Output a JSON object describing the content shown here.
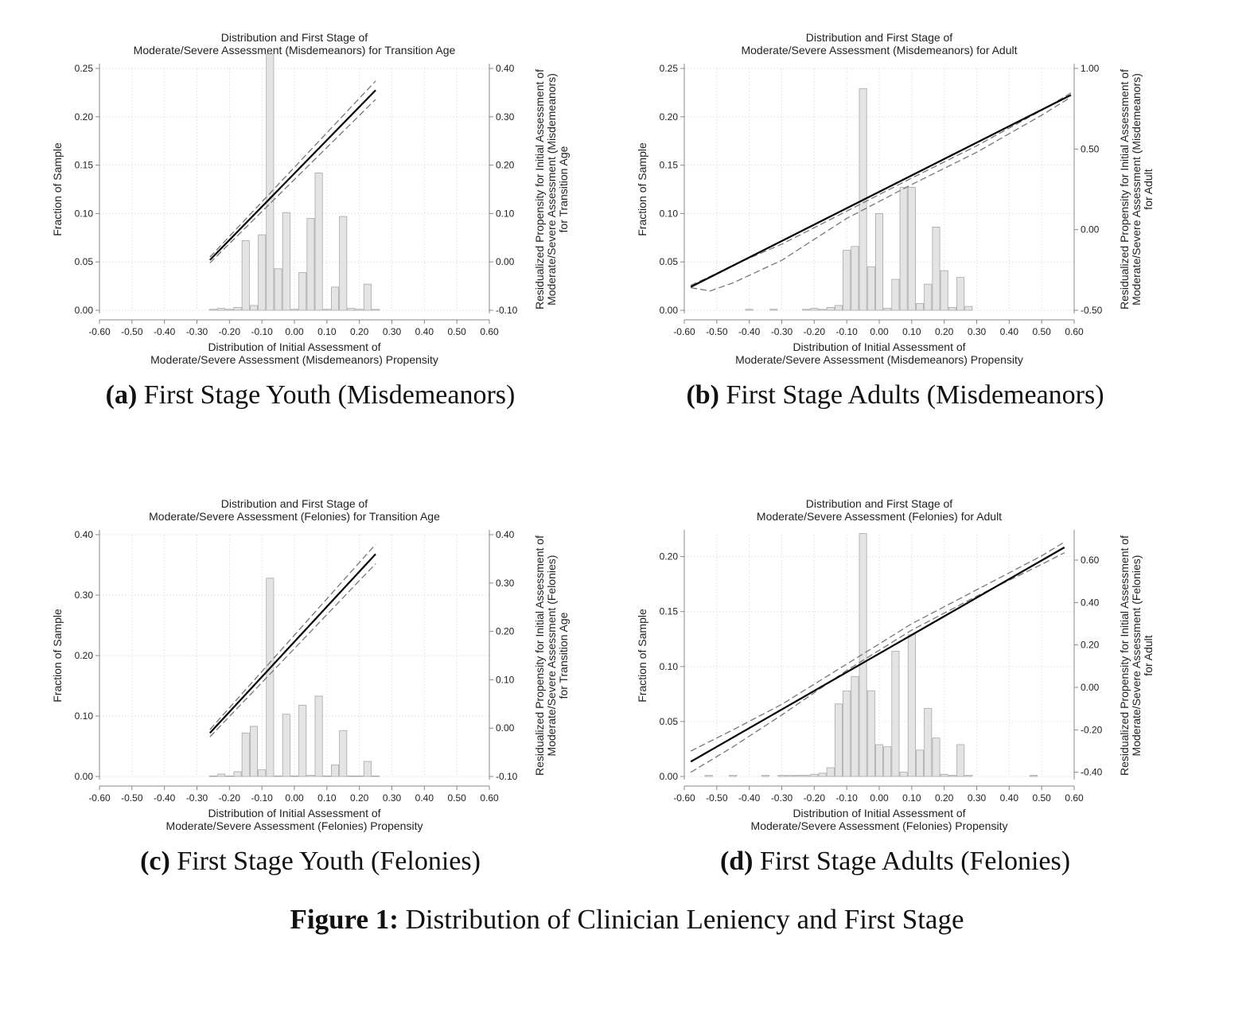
{
  "figure_caption": {
    "label": "Figure 1:",
    "text": "Distribution of Clinician Leniency and First Stage"
  },
  "chart_data": [
    {
      "type": "bar",
      "panel_label": "(a)",
      "subcaption": "First Stage Youth (Misdemeanors)",
      "title": [
        "Distribution and First Stage of",
        "Moderate/Severe Assessment (Misdemeanors) for Transition Age"
      ],
      "xlabel": [
        "Distribution of Initial Assessment of",
        "Moderate/Severe Assessment (Misdemeanors) Propensity"
      ],
      "ylabel_left": "Fraction of Sample",
      "ylabel_right": [
        "Residualized Propensity for Initial Assessment of",
        "Moderate/Severe Assessment (Misdemeanors)",
        "for Transition Age"
      ],
      "xlim": [
        -0.6,
        0.6
      ],
      "ylim_left": [
        0,
        0.25
      ],
      "ylim_right": [
        -0.1,
        0.4
      ],
      "x_ticks": [
        "-0.60",
        "-0.50",
        "-0.40",
        "-0.30",
        "-0.20",
        "-0.10",
        "0.00",
        "0.10",
        "0.20",
        "0.30",
        "0.40",
        "0.50",
        "0.60"
      ],
      "y_ticks_left": [
        "0.00",
        "0.05",
        "0.10",
        "0.15",
        "0.20",
        "0.25"
      ],
      "y_ticks_right": [
        "-0.10",
        "0.00",
        "0.10",
        "0.20",
        "0.30",
        "0.40"
      ],
      "histogram": {
        "bin_width": 0.025,
        "x": [
          -0.25,
          -0.225,
          -0.2,
          -0.175,
          -0.15,
          -0.125,
          -0.1,
          -0.075,
          -0.05,
          -0.025,
          0.0,
          0.025,
          0.05,
          0.075,
          0.1,
          0.125,
          0.15,
          0.175,
          0.2,
          0.225,
          0.25
        ],
        "values": [
          0.001,
          0.002,
          0.001,
          0.003,
          0.072,
          0.005,
          0.078,
          0.265,
          0.043,
          0.101,
          0.001,
          0.039,
          0.095,
          0.142,
          0.001,
          0.024,
          0.097,
          0.002,
          0.001,
          0.027,
          0.001
        ]
      },
      "fit_line": {
        "x": [
          -0.26,
          0.25
        ],
        "y": [
          0.004,
          0.355
        ]
      },
      "ci_upper": {
        "x": [
          -0.26,
          0.25
        ],
        "y": [
          0.01,
          0.374
        ]
      },
      "ci_lower": {
        "x": [
          -0.26,
          0.25
        ],
        "y": [
          -0.002,
          0.336
        ]
      }
    },
    {
      "type": "bar",
      "panel_label": "(b)",
      "subcaption": "First Stage Adults (Misdemeanors)",
      "title": [
        "Distribution and First Stage of",
        "Moderate/Severe Assessment (Misdemeanors) for Adult"
      ],
      "xlabel": [
        "Distribution of Initial Assessment of",
        "Moderate/Severe Assessment (Misdemeanors) Propensity"
      ],
      "ylabel_left": "Fraction of Sample",
      "ylabel_right": [
        "Residualized Propensity for Initial Assessment of",
        "Moderate/Severe Assessment (Misdemeanors)",
        "for Adult"
      ],
      "xlim": [
        -0.6,
        0.6
      ],
      "ylim_left": [
        0,
        0.25
      ],
      "ylim_right": [
        -0.5,
        1.0
      ],
      "x_ticks": [
        "-0.60",
        "-0.50",
        "-0.40",
        "-0.30",
        "-0.20",
        "-0.10",
        "0.00",
        "0.10",
        "0.20",
        "0.30",
        "0.40",
        "0.50",
        "0.60"
      ],
      "y_ticks_left": [
        "0.00",
        "0.05",
        "0.10",
        "0.15",
        "0.20",
        "0.25"
      ],
      "y_ticks_right": [
        "-0.50",
        "0.00",
        "0.50",
        "1.00"
      ],
      "histogram": {
        "bin_width": 0.025,
        "x": [
          -0.4,
          -0.325,
          -0.225,
          -0.2,
          -0.175,
          -0.15,
          -0.125,
          -0.1,
          -0.075,
          -0.05,
          -0.025,
          0.0,
          0.025,
          0.05,
          0.075,
          0.1,
          0.125,
          0.15,
          0.175,
          0.2,
          0.225,
          0.25,
          0.275
        ],
        "values": [
          0.001,
          0.001,
          0.001,
          0.002,
          0.001,
          0.003,
          0.005,
          0.062,
          0.066,
          0.229,
          0.045,
          0.1,
          0.002,
          0.032,
          0.127,
          0.127,
          0.007,
          0.027,
          0.086,
          0.041,
          0.003,
          0.034,
          0.004
        ]
      },
      "fit_line": {
        "x": [
          -0.58,
          0.59
        ],
        "y": [
          -0.355,
          0.835
        ]
      },
      "ci_upper": {
        "x": [
          -0.58,
          -0.52,
          -0.45,
          -0.3,
          -0.1,
          0.1,
          0.3,
          0.5,
          0.59
        ],
        "y": [
          -0.345,
          -0.29,
          -0.22,
          -0.09,
          0.115,
          0.32,
          0.52,
          0.74,
          0.848
        ]
      },
      "ci_lower": {
        "x": [
          -0.58,
          -0.52,
          -0.45,
          -0.3,
          -0.1,
          0.1,
          0.3,
          0.5,
          0.59
        ],
        "y": [
          -0.36,
          -0.38,
          -0.33,
          -0.19,
          0.07,
          0.28,
          0.48,
          0.71,
          0.822
        ]
      }
    },
    {
      "type": "bar",
      "panel_label": "(c)",
      "subcaption": "First Stage Youth (Felonies)",
      "title": [
        "Distribution and First Stage of",
        "Moderate/Severe Assessment (Felonies) for Transition Age"
      ],
      "xlabel": [
        "Distribution of Initial Assessment of",
        "Moderate/Severe Assessment (Felonies) Propensity"
      ],
      "ylabel_left": "Fraction of Sample",
      "ylabel_right": [
        "Residualized Propensity for Initial Assessment of",
        "Moderate/Severe Assessment (Felonies)",
        "for Transition Age"
      ],
      "xlim": [
        -0.6,
        0.6
      ],
      "ylim_left": [
        0,
        0.4
      ],
      "ylim_right": [
        -0.1,
        0.4
      ],
      "x_ticks": [
        "-0.60",
        "-0.50",
        "-0.40",
        "-0.30",
        "-0.20",
        "-0.10",
        "0.00",
        "0.10",
        "0.20",
        "0.30",
        "0.40",
        "0.50",
        "0.60"
      ],
      "y_ticks_left": [
        "0.00",
        "0.10",
        "0.20",
        "0.30",
        "0.40"
      ],
      "y_ticks_right": [
        "-0.10",
        "0.00",
        "0.10",
        "0.20",
        "0.30",
        "0.40"
      ],
      "histogram": {
        "bin_width": 0.025,
        "x": [
          -0.25,
          -0.225,
          -0.2,
          -0.175,
          -0.15,
          -0.125,
          -0.1,
          -0.075,
          -0.05,
          -0.025,
          0.0,
          0.025,
          0.05,
          0.075,
          0.1,
          0.125,
          0.15,
          0.175,
          0.2,
          0.225,
          0.25
        ],
        "values": [
          0.001,
          0.004,
          0.001,
          0.008,
          0.072,
          0.083,
          0.011,
          0.328,
          0.001,
          0.103,
          0.001,
          0.118,
          0.002,
          0.133,
          0.001,
          0.019,
          0.076,
          0.001,
          0.001,
          0.025,
          0.001
        ]
      },
      "fit_line": {
        "x": [
          -0.26,
          0.25
        ],
        "y": [
          -0.01,
          0.36
        ]
      },
      "ci_upper": {
        "x": [
          -0.26,
          0.25
        ],
        "y": [
          -0.003,
          0.38
        ]
      },
      "ci_lower": {
        "x": [
          -0.26,
          0.25
        ],
        "y": [
          -0.018,
          0.34
        ]
      }
    },
    {
      "type": "bar",
      "panel_label": "(d)",
      "subcaption": "First Stage Adults (Felonies)",
      "title": [
        "Distribution and First Stage of",
        "Moderate/Severe Assessment (Felonies) for Adult"
      ],
      "xlabel": [
        "Distribution of Initial Assessment of",
        "Moderate/Severe Assessment (Felonies) Propensity"
      ],
      "ylabel_left": "Fraction of Sample",
      "ylabel_right": [
        "Residualized Propensity for Initial Assessment of",
        "Moderate/Severe Assessment (Felonies)",
        "for Adult"
      ],
      "xlim": [
        -0.6,
        0.6
      ],
      "ylim_left": [
        0,
        0.22
      ],
      "ylim_right": [
        -0.42,
        0.72
      ],
      "x_ticks": [
        "-0.60",
        "-0.50",
        "-0.40",
        "-0.30",
        "-0.20",
        "-0.10",
        "0.00",
        "0.10",
        "0.20",
        "0.30",
        "0.40",
        "0.50",
        "0.60"
      ],
      "y_ticks_left": [
        "0.00",
        "0.05",
        "0.10",
        "0.15",
        "0.20"
      ],
      "y_ticks_right": [
        "-0.40",
        "-0.20",
        "0.00",
        "0.20",
        "0.40",
        "0.60"
      ],
      "histogram": {
        "bin_width": 0.025,
        "x": [
          -0.525,
          -0.45,
          -0.35,
          -0.3,
          -0.275,
          -0.25,
          -0.225,
          -0.2,
          -0.175,
          -0.15,
          -0.125,
          -0.1,
          -0.075,
          -0.05,
          -0.025,
          0.0,
          0.025,
          0.05,
          0.075,
          0.1,
          0.125,
          0.15,
          0.175,
          0.2,
          0.225,
          0.25,
          0.275,
          0.475
        ],
        "values": [
          0.001,
          0.001,
          0.001,
          0.001,
          0.001,
          0.001,
          0.001,
          0.002,
          0.003,
          0.008,
          0.066,
          0.078,
          0.091,
          0.221,
          0.078,
          0.029,
          0.027,
          0.114,
          0.004,
          0.129,
          0.024,
          0.062,
          0.035,
          0.002,
          0.001,
          0.029,
          0.001,
          0.001
        ]
      },
      "fit_line": {
        "x": [
          -0.58,
          0.57
        ],
        "y": [
          -0.35,
          0.66
        ]
      },
      "ci_upper": {
        "x": [
          -0.58,
          -0.45,
          -0.3,
          -0.1,
          0.1,
          0.3,
          0.5,
          0.57
        ],
        "y": [
          -0.3,
          -0.2,
          -0.08,
          0.11,
          0.3,
          0.46,
          0.62,
          0.685
        ]
      },
      "ci_lower": {
        "x": [
          -0.58,
          -0.45,
          -0.3,
          -0.1,
          0.1,
          0.3,
          0.5,
          0.57
        ],
        "y": [
          -0.4,
          -0.28,
          -0.13,
          0.08,
          0.27,
          0.43,
          0.58,
          0.635
        ]
      }
    }
  ]
}
